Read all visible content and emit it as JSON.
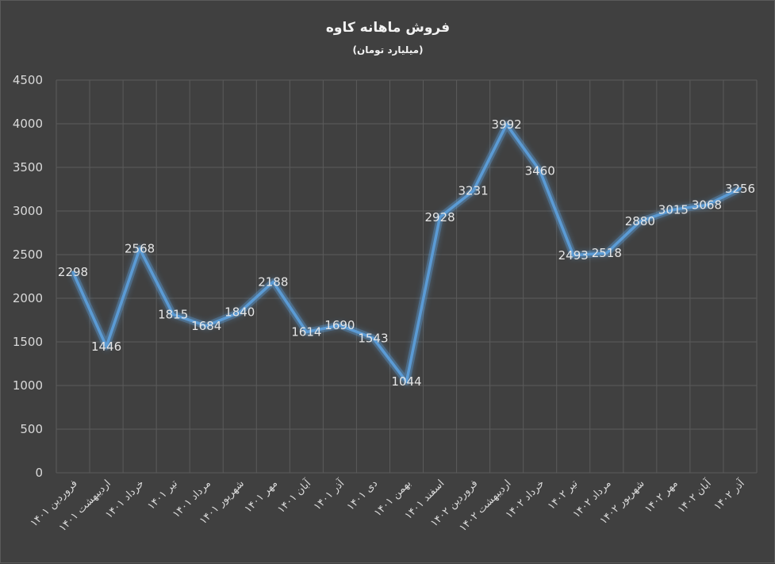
{
  "chart_data": {
    "type": "line",
    "title": "فروش ماهانه کاوه",
    "subtitle": "(میلیارد تومان)",
    "categories": [
      "فروردین ۱۴۰۱",
      "اردیبهشت ۱۴۰۱",
      "خرداد ۱۴۰۱",
      "تیر ۱۴۰۱",
      "مرداد ۱۴۰۱",
      "شهریور ۱۴۰۱",
      "مهر ۱۴۰۱",
      "آبان ۱۴۰۱",
      "آذر ۱۴۰۱",
      "دی ۱۴۰۱",
      "بهمن ۱۴۰۱",
      "اسفند ۱۴۰۱",
      "فروردین ۱۴۰۲",
      "اردیبهشت ۱۴۰۲",
      "خرداد ۱۴۰۲",
      "تیر ۱۴۰۲",
      "مرداد ۱۴۰۲",
      "شهریور ۱۴۰۲",
      "مهر ۱۴۰۲",
      "آبان ۱۴۰۲",
      "آذر ۱۴۰۲"
    ],
    "values": [
      2298,
      1446,
      2568,
      1815,
      1684,
      1840,
      2188,
      1614,
      1690,
      1543,
      1044,
      2928,
      3231,
      3992,
      3460,
      2493,
      2518,
      2880,
      3015,
      3068,
      3256
    ],
    "ylim": [
      0,
      4500
    ],
    "yticks": [
      0,
      500,
      1000,
      1500,
      2000,
      2500,
      3000,
      3500,
      4000,
      4500
    ],
    "grid": true,
    "legend": "none",
    "colors": {
      "background": "#404040",
      "line": "#5b9bd5",
      "glow": "#5b9bd5",
      "text": "#d9d9d9"
    }
  }
}
